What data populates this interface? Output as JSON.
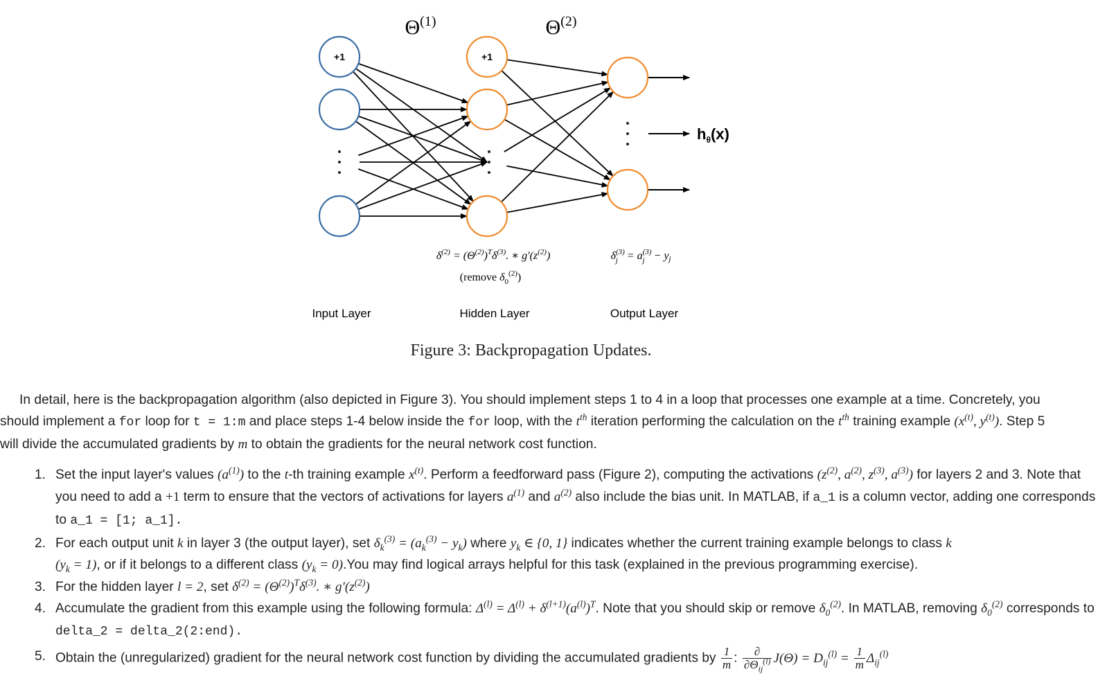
{
  "diagram": {
    "theta1": "Θ(1)",
    "theta2": "Θ(2)",
    "bias_label": "+1",
    "input_layer_label": "Input Layer",
    "hidden_layer_label": "Hidden Layer",
    "output_layer_label": "Output Layer",
    "output_label": "hθ(x)",
    "delta2_formula": "δ(2) = (Θ(2))Tδ(3). ∗ g′(z(2))",
    "remove_note": "(remove δ0(2))",
    "delta3_formula": "δj(3) = aj(3) − yj",
    "colors": {
      "input_node": "#3b6ea5",
      "hidden_node": "#f08a2c",
      "edge": "#000000"
    }
  },
  "caption": "Figure 3: Backpropagation Updates.",
  "intro": {
    "s1": "In detail, here is the backpropagation algorithm (also depicted in Figure 3). You should implement steps 1 to 4 in a loop that processes one example at a time. Concretely, you should implement a ",
    "code_for": "for",
    "s2": " loop for ",
    "code_loop": "t = 1:m",
    "s3": " and place steps 1-4 below inside the ",
    "s4": " loop, with the ",
    "s5": " iteration performing the calculation on the ",
    "s6": " training example ",
    "s7": ". Step 5 will divide the accumulated gradients by ",
    "s8": " to obtain the gradients for the neural network cost function."
  },
  "steps": [
    {
      "num": "1.",
      "a": "Set the input layer's values ",
      "b": " to the ",
      "c": "-th training example ",
      "d": ". Perform a feedforward pass (Figure 2), computing the activations ",
      "e": " for layers 2 and 3. Note that you need to add a ",
      "f": " term to ensure that the vectors of activations for layers ",
      "g": " and ",
      "h": " also include the bias unit. In MATLAB, if ",
      "code1": "a_1",
      "i": " is a column vector, adding one corresponds to ",
      "code2": "a_1 = [1; a_1]."
    },
    {
      "num": "2.",
      "a": "For each output unit ",
      "b": " in layer 3 (the output layer), set ",
      "c": " where ",
      "d": " indicates whether the current training example belongs to class ",
      "e": ", or if it belongs to a different class ",
      "f": ".You may find logical arrays helpful for this task (explained in the previous programming exercise)."
    },
    {
      "num": "3.",
      "a": "For the hidden layer ",
      "b": ", set "
    },
    {
      "num": "4.",
      "a": "Accumulate the gradient from this example using the following formula: ",
      "b": ". Note that you should skip or remove ",
      "c": ". In MATLAB, removing ",
      "d": " corresponds to ",
      "code": "delta_2 = delta_2(2:end)."
    },
    {
      "num": "5.",
      "a": "Obtain the (unregularized) gradient for the neural network cost function by dividing the accumulated gradients by "
    }
  ]
}
